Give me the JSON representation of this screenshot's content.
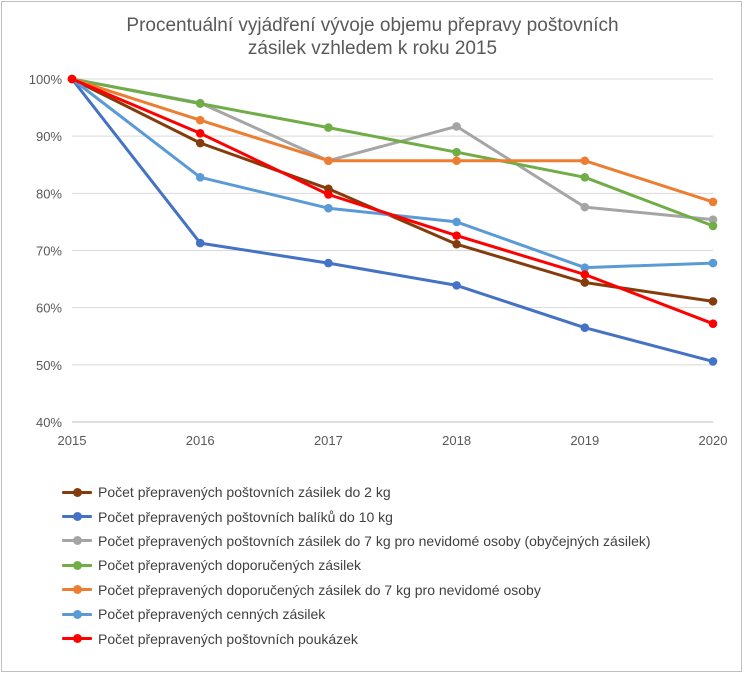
{
  "chart_data": {
    "type": "line",
    "title": "Procentuální  vyjádření  vývoje objemu přepravy poštovních\nzásilek vzhledem  k roku 2015",
    "x": [
      "2015",
      "2016",
      "2017",
      "2018",
      "2019",
      "2020"
    ],
    "ylim": [
      40,
      100
    ],
    "yticks": [
      "40%",
      "50%",
      "60%",
      "70%",
      "80%",
      "90%",
      "100%"
    ],
    "grid": true,
    "legend_position": "bottom",
    "series": [
      {
        "name": "Počet přepravených poštovních zásilek do 2 kg",
        "color": "#843c0c",
        "values": [
          100,
          88.8,
          80.8,
          71.1,
          64.4,
          61.1
        ]
      },
      {
        "name": "Počet přepravených poštovních balíků do 10 kg",
        "color": "#4472c4",
        "values": [
          100,
          71.3,
          67.8,
          63.9,
          56.5,
          50.6
        ]
      },
      {
        "name": "Počet přepravených poštovních zásilek do 7 kg pro nevidomé osoby (obyčejných zásilek)",
        "color": "#a5a5a5",
        "values": [
          100,
          95.8,
          85.7,
          91.7,
          77.6,
          75.4
        ]
      },
      {
        "name": "Počet přepravených doporučených zásilek",
        "color": "#70ad47",
        "values": [
          100,
          95.7,
          91.5,
          87.2,
          82.8,
          74.3
        ]
      },
      {
        "name": "Počet přepravených doporučených zásilek do 7 kg pro nevidomé osoby",
        "color": "#ed7d31",
        "values": [
          100,
          92.8,
          85.7,
          85.7,
          85.7,
          78.5
        ]
      },
      {
        "name": "Počet přepravených cenných zásilek",
        "color": "#5b9bd5",
        "values": [
          100,
          82.8,
          77.4,
          75.0,
          67.0,
          67.8
        ]
      },
      {
        "name": "Počet přepravených poštovních poukázek",
        "color": "#ff0000",
        "values": [
          100,
          90.5,
          79.8,
          72.6,
          65.8,
          57.2
        ]
      }
    ]
  }
}
